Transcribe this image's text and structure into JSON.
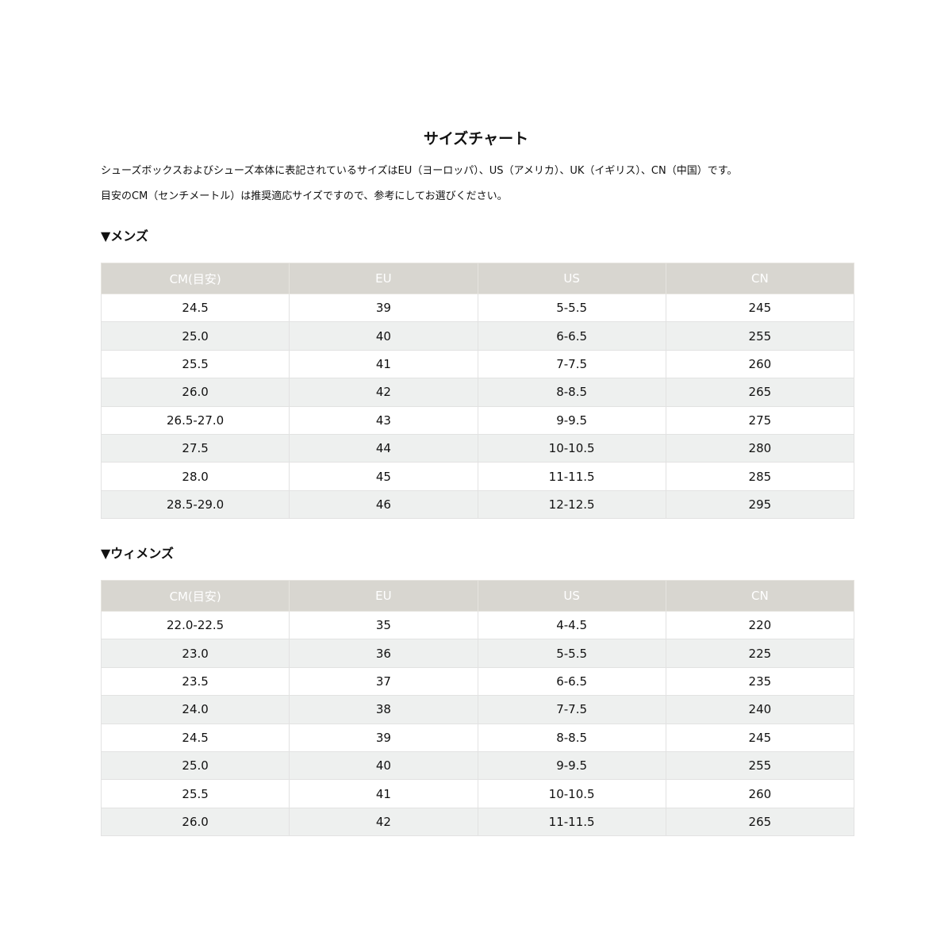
{
  "title": "サイズチャート",
  "intro": [
    "シューズボックスおよびシューズ本体に表記されているサイズはEU（ヨーロッパ）、US（アメリカ）、UK（イギリス）、CN（中国）です。",
    "目安のCM（センチメートル）は推奨適応サイズですので、参考にしてお選びください。"
  ],
  "colors": {
    "header_bg": "#d8d6d0",
    "alt_row_bg": "#eef0ef"
  },
  "mens": {
    "heading": "▼メンズ",
    "headers": [
      "CM(目安)",
      "EU",
      "US",
      "CN"
    ],
    "rows": [
      [
        "24.5",
        "39",
        "5-5.5",
        "245"
      ],
      [
        "25.0",
        "40",
        "6-6.5",
        "255"
      ],
      [
        "25.5",
        "41",
        "7-7.5",
        "260"
      ],
      [
        "26.0",
        "42",
        "8-8.5",
        "265"
      ],
      [
        "26.5-27.0",
        "43",
        "9-9.5",
        "275"
      ],
      [
        "27.5",
        "44",
        "10-10.5",
        "280"
      ],
      [
        "28.0",
        "45",
        "11-11.5",
        "285"
      ],
      [
        "28.5-29.0",
        "46",
        "12-12.5",
        "295"
      ]
    ]
  },
  "womens": {
    "heading": "▼ウィメンズ",
    "headers": [
      "CM(目安)",
      "EU",
      "US",
      "CN"
    ],
    "rows": [
      [
        "22.0-22.5",
        "35",
        "4-4.5",
        "220"
      ],
      [
        "23.0",
        "36",
        "5-5.5",
        "225"
      ],
      [
        "23.5",
        "37",
        "6-6.5",
        "235"
      ],
      [
        "24.0",
        "38",
        "7-7.5",
        "240"
      ],
      [
        "24.5",
        "39",
        "8-8.5",
        "245"
      ],
      [
        "25.0",
        "40",
        "9-9.5",
        "255"
      ],
      [
        "25.5",
        "41",
        "10-10.5",
        "260"
      ],
      [
        "26.0",
        "42",
        "11-11.5",
        "265"
      ]
    ]
  }
}
